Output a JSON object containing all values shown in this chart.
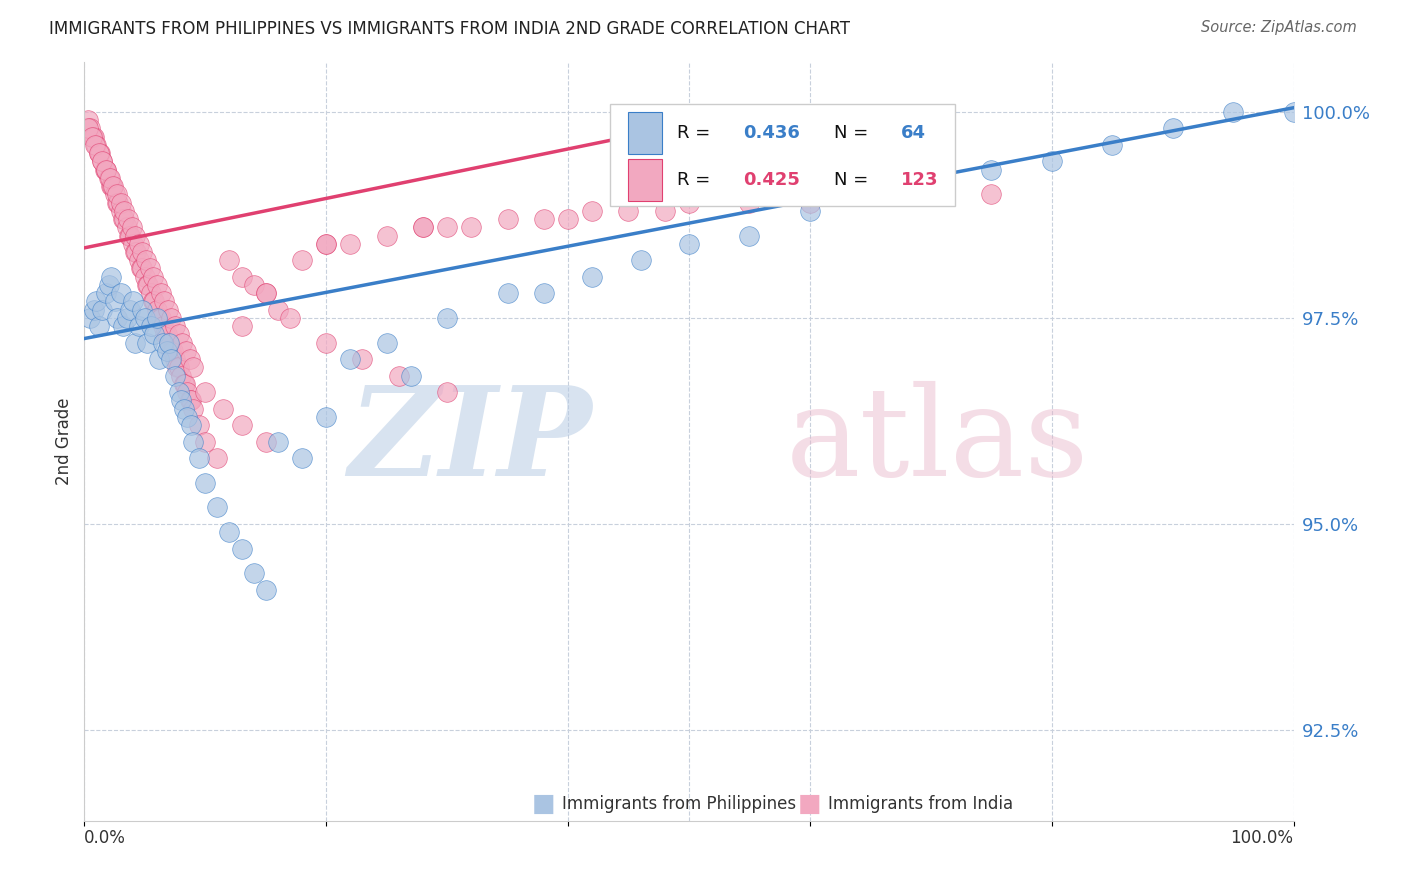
{
  "title": "IMMIGRANTS FROM PHILIPPINES VS IMMIGRANTS FROM INDIA 2ND GRADE CORRELATION CHART",
  "source": "Source: ZipAtlas.com",
  "ylabel": "2nd Grade",
  "ytick_labels": [
    "100.0%",
    "97.5%",
    "95.0%",
    "92.5%"
  ],
  "ytick_values": [
    1.0,
    0.975,
    0.95,
    0.925
  ],
  "xlim": [
    0.0,
    1.0
  ],
  "ylim": [
    0.914,
    1.006
  ],
  "color_philippines": "#aac4e2",
  "color_india": "#f2a8c0",
  "color_philippines_line": "#3a7ec8",
  "color_india_line": "#e04070",
  "color_ytick": "#3a7ec8",
  "philippines_x": [
    0.005,
    0.008,
    0.01,
    0.012,
    0.015,
    0.018,
    0.02,
    0.022,
    0.025,
    0.027,
    0.03,
    0.032,
    0.035,
    0.038,
    0.04,
    0.042,
    0.045,
    0.048,
    0.05,
    0.052,
    0.055,
    0.058,
    0.06,
    0.062,
    0.065,
    0.068,
    0.07,
    0.072,
    0.075,
    0.078,
    0.08,
    0.082,
    0.085,
    0.088,
    0.09,
    0.095,
    0.1,
    0.11,
    0.12,
    0.13,
    0.14,
    0.15,
    0.16,
    0.18,
    0.2,
    0.22,
    0.25,
    0.27,
    0.3,
    0.35,
    0.38,
    0.42,
    0.46,
    0.5,
    0.55,
    0.6,
    0.65,
    0.7,
    0.75,
    0.8,
    0.85,
    0.9,
    0.95,
    1.0
  ],
  "philippines_y": [
    0.975,
    0.976,
    0.977,
    0.974,
    0.976,
    0.978,
    0.979,
    0.98,
    0.977,
    0.975,
    0.978,
    0.974,
    0.975,
    0.976,
    0.977,
    0.972,
    0.974,
    0.976,
    0.975,
    0.972,
    0.974,
    0.973,
    0.975,
    0.97,
    0.972,
    0.971,
    0.972,
    0.97,
    0.968,
    0.966,
    0.965,
    0.964,
    0.963,
    0.962,
    0.96,
    0.958,
    0.955,
    0.952,
    0.949,
    0.947,
    0.944,
    0.942,
    0.96,
    0.958,
    0.963,
    0.97,
    0.972,
    0.968,
    0.975,
    0.978,
    0.978,
    0.98,
    0.982,
    0.984,
    0.985,
    0.988,
    0.99,
    0.991,
    0.993,
    0.994,
    0.996,
    0.998,
    1.0,
    1.0
  ],
  "india_x": [
    0.003,
    0.005,
    0.007,
    0.008,
    0.01,
    0.012,
    0.013,
    0.015,
    0.017,
    0.018,
    0.02,
    0.022,
    0.023,
    0.025,
    0.027,
    0.028,
    0.03,
    0.032,
    0.033,
    0.035,
    0.037,
    0.038,
    0.04,
    0.042,
    0.043,
    0.045,
    0.047,
    0.048,
    0.05,
    0.052,
    0.053,
    0.055,
    0.057,
    0.058,
    0.06,
    0.062,
    0.063,
    0.065,
    0.067,
    0.068,
    0.07,
    0.072,
    0.073,
    0.075,
    0.077,
    0.078,
    0.08,
    0.082,
    0.083,
    0.085,
    0.087,
    0.088,
    0.09,
    0.095,
    0.1,
    0.11,
    0.12,
    0.13,
    0.14,
    0.15,
    0.16,
    0.18,
    0.2,
    0.22,
    0.25,
    0.28,
    0.3,
    0.32,
    0.35,
    0.38,
    0.4,
    0.42,
    0.45,
    0.48,
    0.5,
    0.55,
    0.6,
    0.65,
    0.7,
    0.75,
    0.003,
    0.006,
    0.009,
    0.012,
    0.015,
    0.018,
    0.021,
    0.024,
    0.027,
    0.03,
    0.033,
    0.036,
    0.039,
    0.042,
    0.045,
    0.048,
    0.051,
    0.054,
    0.057,
    0.06,
    0.063,
    0.066,
    0.069,
    0.072,
    0.075,
    0.078,
    0.081,
    0.084,
    0.087,
    0.09,
    0.1,
    0.115,
    0.13,
    0.15,
    0.17,
    0.2,
    0.23,
    0.26,
    0.3,
    0.2,
    0.15,
    0.28,
    0.13
  ],
  "india_y": [
    0.999,
    0.998,
    0.997,
    0.997,
    0.996,
    0.995,
    0.995,
    0.994,
    0.993,
    0.993,
    0.992,
    0.991,
    0.991,
    0.99,
    0.989,
    0.989,
    0.988,
    0.987,
    0.987,
    0.986,
    0.985,
    0.985,
    0.984,
    0.983,
    0.983,
    0.982,
    0.981,
    0.981,
    0.98,
    0.979,
    0.979,
    0.978,
    0.977,
    0.977,
    0.976,
    0.975,
    0.975,
    0.974,
    0.973,
    0.973,
    0.972,
    0.971,
    0.971,
    0.97,
    0.969,
    0.969,
    0.968,
    0.967,
    0.967,
    0.966,
    0.965,
    0.965,
    0.964,
    0.962,
    0.96,
    0.958,
    0.982,
    0.98,
    0.979,
    0.978,
    0.976,
    0.982,
    0.984,
    0.984,
    0.985,
    0.986,
    0.986,
    0.986,
    0.987,
    0.987,
    0.987,
    0.988,
    0.988,
    0.988,
    0.989,
    0.989,
    0.989,
    0.99,
    0.99,
    0.99,
    0.998,
    0.997,
    0.996,
    0.995,
    0.994,
    0.993,
    0.992,
    0.991,
    0.99,
    0.989,
    0.988,
    0.987,
    0.986,
    0.985,
    0.984,
    0.983,
    0.982,
    0.981,
    0.98,
    0.979,
    0.978,
    0.977,
    0.976,
    0.975,
    0.974,
    0.973,
    0.972,
    0.971,
    0.97,
    0.969,
    0.966,
    0.964,
    0.962,
    0.96,
    0.975,
    0.972,
    0.97,
    0.968,
    0.966,
    0.984,
    0.978,
    0.986,
    0.974
  ],
  "phil_line_x": [
    0.0,
    1.0
  ],
  "phil_line_y": [
    0.9725,
    1.0005
  ],
  "india_line_x": [
    0.0,
    0.5
  ],
  "india_line_y": [
    0.9835,
    0.9985
  ]
}
